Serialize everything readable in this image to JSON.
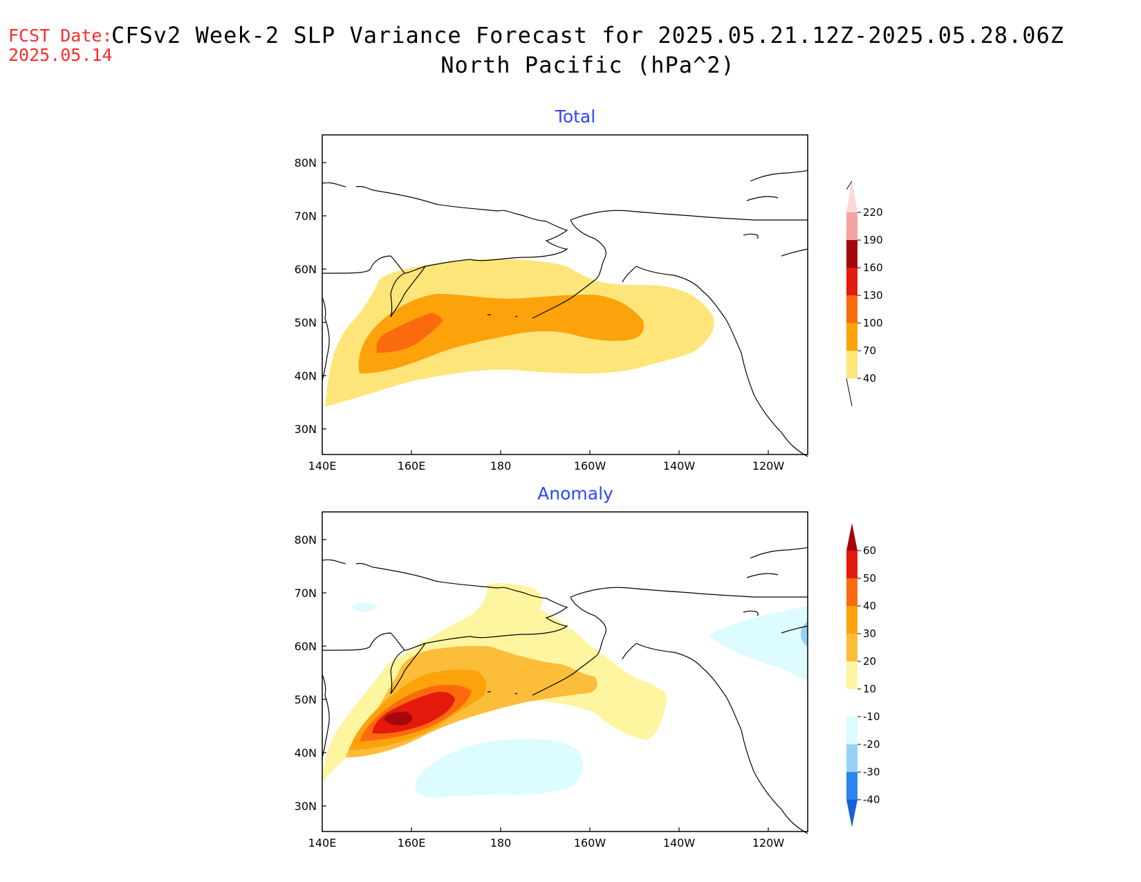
{
  "header": {
    "fcst_label": "FCST Date:",
    "fcst_date": "2025.05.14",
    "title_line1": "CFSv2 Week-2 SLP Variance Forecast for 2025.05.21.12Z-2025.05.28.06Z",
    "title_line2": "North Pacific (hPa^2)"
  },
  "axes": {
    "lon_labels": [
      "140E",
      "160E",
      "180",
      "160W",
      "140W",
      "120W"
    ],
    "lat_labels": [
      "80N",
      "70N",
      "60N",
      "50N",
      "40N",
      "30N"
    ]
  },
  "panels": [
    {
      "title": "Total",
      "colorbar": {
        "levels": [
          "40",
          "70",
          "100",
          "130",
          "160",
          "190",
          "220"
        ],
        "colors": [
          "#fde57a",
          "#fca20b",
          "#fb6b0e",
          "#e41a0c",
          "#a4080a",
          "#f3a3a1",
          "#fcd7d6"
        ]
      },
      "contours": [
        {
          "level": "40-70",
          "color": "#fde57a"
        },
        {
          "level": "70-100",
          "color": "#fca20b"
        },
        {
          "level": "100-130",
          "color": "#fb6b0e"
        }
      ]
    },
    {
      "title": "Anomaly",
      "colorbar": {
        "levels": [
          "60",
          "50",
          "40",
          "30",
          "20",
          "10",
          "-10",
          "-20",
          "-30",
          "-40"
        ],
        "colors": [
          "#a4080a",
          "#e41a0c",
          "#fb6b0e",
          "#fca20b",
          "#fbbd3a",
          "#fdf5a0",
          "#ffffff",
          "#dcfcff",
          "#96d0f8",
          "#2a85f0",
          "#1460d8"
        ]
      },
      "contours": [
        {
          "level": "10-20",
          "color": "#fdf5a0"
        },
        {
          "level": "20-30",
          "color": "#fbbd3a"
        },
        {
          "level": "30-40",
          "color": "#fca20b"
        },
        {
          "level": "40-50",
          "color": "#fb6b0e"
        },
        {
          "level": "50-60",
          "color": "#e41a0c"
        },
        {
          "level": ">60",
          "color": "#a4080a"
        },
        {
          "level": "-10 to -20",
          "color": "#dcfcff"
        },
        {
          "level": "-20 to -30",
          "color": "#96d0f8"
        }
      ]
    }
  ]
}
